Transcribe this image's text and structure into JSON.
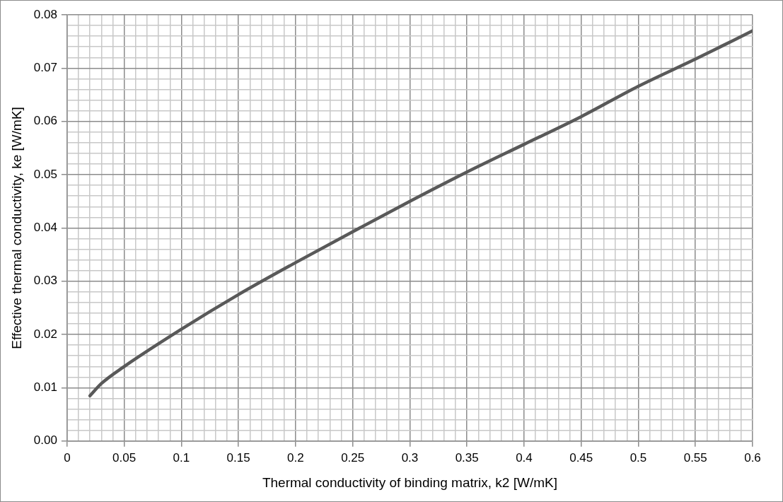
{
  "chart_data": {
    "type": "line",
    "xlabel": "Thermal conductivity of binding matrix, k2 [W/mK]",
    "ylabel": "Effective thermal conductivity, ke [W/mK]",
    "x": [
      0.02,
      0.03,
      0.05,
      0.1,
      0.15,
      0.2,
      0.25,
      0.3,
      0.35,
      0.4,
      0.45,
      0.5,
      0.55,
      0.6
    ],
    "series": [
      {
        "color": "#595959",
        "values": [
          0.0085,
          0.0108,
          0.014,
          0.021,
          0.0275,
          0.0335,
          0.0393,
          0.045,
          0.0505,
          0.0557,
          0.0609,
          0.0666,
          0.0717,
          0.077
        ]
      }
    ],
    "xlim": [
      0,
      0.6
    ],
    "ylim": [
      0,
      0.08
    ],
    "xticks": [
      0,
      {
        "value": 0.01,
        "label": null
      },
      {
        "value": 0.02,
        "label": null
      },
      {
        "value": 0.03,
        "label": null
      },
      {
        "value": 0.04,
        "label": null
      },
      0.05,
      {
        "value": 0.06,
        "label": null
      },
      {
        "value": 0.07,
        "label": null
      },
      {
        "value": 0.08,
        "label": null
      },
      {
        "value": 0.09,
        "label": null
      },
      0.1,
      {
        "value": 0.11,
        "label": null
      },
      {
        "value": 0.12,
        "label": null
      },
      {
        "value": 0.13,
        "label": null
      },
      {
        "value": 0.14,
        "label": null
      },
      0.15,
      {
        "value": 0.16,
        "label": null
      },
      {
        "value": 0.17,
        "label": null
      },
      {
        "value": 0.18,
        "label": null
      },
      {
        "value": 0.19,
        "label": null
      },
      0.2,
      {
        "value": 0.21,
        "label": null
      },
      {
        "value": 0.22,
        "label": null
      },
      {
        "value": 0.23,
        "label": null
      },
      {
        "value": 0.24,
        "label": null
      },
      0.25,
      {
        "value": 0.26,
        "label": null
      },
      {
        "value": 0.27,
        "label": null
      },
      {
        "value": 0.28,
        "label": null
      },
      {
        "value": 0.29,
        "label": null
      },
      0.3,
      {
        "value": 0.31,
        "label": null
      },
      {
        "value": 0.32,
        "label": null
      },
      {
        "value": 0.33,
        "label": null
      },
      {
        "value": 0.34,
        "label": null
      },
      0.35,
      {
        "value": 0.36,
        "label": null
      },
      {
        "value": 0.37,
        "label": null
      },
      {
        "value": 0.38,
        "label": null
      },
      {
        "value": 0.39,
        "label": null
      },
      0.4,
      {
        "value": 0.41,
        "label": null
      },
      {
        "value": 0.42,
        "label": null
      },
      {
        "value": 0.43,
        "label": null
      },
      {
        "value": 0.44,
        "label": null
      },
      0.45,
      {
        "value": 0.46,
        "label": null
      },
      {
        "value": 0.47,
        "label": null
      },
      {
        "value": 0.48,
        "label": null
      },
      {
        "value": 0.49,
        "label": null
      },
      0.5,
      {
        "value": 0.51,
        "label": null
      },
      {
        "value": 0.52,
        "label": null
      },
      {
        "value": 0.53,
        "label": null
      },
      {
        "value": 0.54,
        "label": null
      },
      0.55,
      {
        "value": 0.56,
        "label": null
      },
      {
        "value": 0.57,
        "label": null
      },
      {
        "value": 0.58,
        "label": null
      },
      {
        "value": 0.59,
        "label": null
      },
      0.6
    ],
    "yticks": [
      {
        "value": 0,
        "label": "0.00"
      },
      {
        "value": 0.002,
        "label": null
      },
      {
        "value": 0.004,
        "label": null
      },
      {
        "value": 0.006,
        "label": null
      },
      {
        "value": 0.008,
        "label": null
      },
      {
        "value": 0.01,
        "label": "0.01"
      },
      {
        "value": 0.012,
        "label": null
      },
      {
        "value": 0.014,
        "label": null
      },
      {
        "value": 0.016,
        "label": null
      },
      {
        "value": 0.018,
        "label": null
      },
      {
        "value": 0.02,
        "label": "0.02"
      },
      {
        "value": 0.022,
        "label": null
      },
      {
        "value": 0.024,
        "label": null
      },
      {
        "value": 0.026,
        "label": null
      },
      {
        "value": 0.028,
        "label": null
      },
      {
        "value": 0.03,
        "label": "0.03"
      },
      {
        "value": 0.032,
        "label": null
      },
      {
        "value": 0.034,
        "label": null
      },
      {
        "value": 0.036,
        "label": null
      },
      {
        "value": 0.038,
        "label": null
      },
      {
        "value": 0.04,
        "label": "0.04"
      },
      {
        "value": 0.042,
        "label": null
      },
      {
        "value": 0.044,
        "label": null
      },
      {
        "value": 0.046,
        "label": null
      },
      {
        "value": 0.048,
        "label": null
      },
      {
        "value": 0.05,
        "label": "0.05"
      },
      {
        "value": 0.052,
        "label": null
      },
      {
        "value": 0.054,
        "label": null
      },
      {
        "value": 0.056,
        "label": null
      },
      {
        "value": 0.058,
        "label": null
      },
      {
        "value": 0.06,
        "label": "0.06"
      },
      {
        "value": 0.062,
        "label": null
      },
      {
        "value": 0.064,
        "label": null
      },
      {
        "value": 0.066,
        "label": null
      },
      {
        "value": 0.068,
        "label": null
      },
      {
        "value": 0.07,
        "label": "0.07"
      },
      {
        "value": 0.072,
        "label": null
      },
      {
        "value": 0.074,
        "label": null
      },
      {
        "value": 0.076,
        "label": null
      },
      {
        "value": 0.078,
        "label": null
      },
      {
        "value": 0.08,
        "label": "0.08"
      }
    ],
    "grid": true,
    "legend": false,
    "marker": "none",
    "line_style": "solid"
  }
}
